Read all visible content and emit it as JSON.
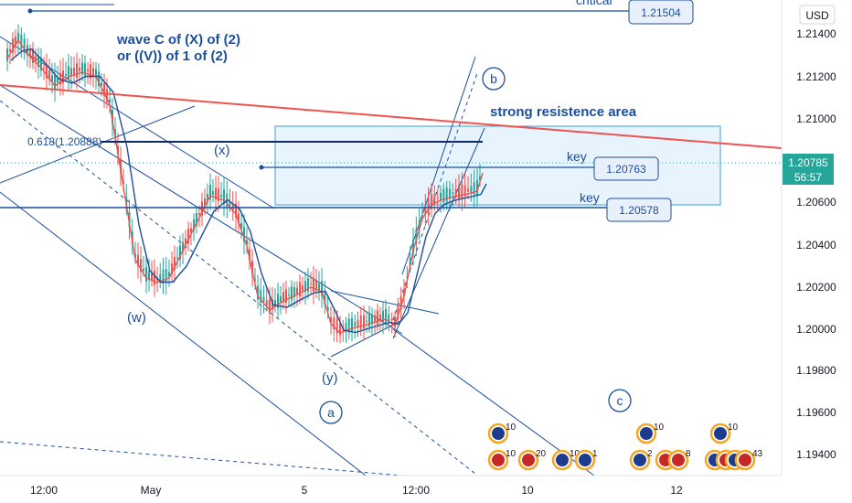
{
  "currency_label": "USD",
  "chart_data": {
    "type": "candlestick",
    "y_axis": {
      "min": 1.193,
      "max": 1.2175,
      "ticks": [
        "1.21400",
        "1.21200",
        "1.21000",
        "1.20600",
        "1.20400",
        "1.20200",
        "1.20000",
        "1.19800",
        "1.19600",
        "1.19400"
      ]
    },
    "x_axis": {
      "ticks": [
        "12:00",
        "May",
        "5",
        "12:00",
        "10",
        "12"
      ]
    },
    "current_price": {
      "value": "1.20785",
      "countdown": "56:57"
    },
    "colors": {
      "resistance_line": "#ef5350",
      "trend_lines": "#1b4e9b",
      "ma_fast": "#ef5350",
      "ma_slow": "#1b4e9b",
      "candle_up": "#26a69a",
      "candle_down": "#ef5350",
      "zone_fill": "#e3f2fd",
      "price_badge": "#26a69a"
    },
    "price_tags": [
      {
        "label": "critical",
        "value": "1.21504"
      },
      {
        "label": "key",
        "value": "1.20763"
      },
      {
        "label": "key",
        "value": "1.20578"
      }
    ],
    "annotations": {
      "title_line1": "wave C of (X) of (2)",
      "title_line2": "or ((V)) of 1 of (2)",
      "zone_label": "strong resistence area",
      "fib_label": "0.618(1.20888)",
      "wave_x": "(x)",
      "wave_w": "(w)",
      "wave_y": "(y)",
      "wave_a": "a",
      "wave_b": "b",
      "wave_c": "c"
    },
    "events": [
      {
        "text": "10",
        "flag": "eu"
      },
      {
        "text": "10",
        "flag": "eu"
      },
      {
        "text": "10",
        "flag": "eu"
      },
      {
        "text": "10",
        "flag": "us"
      },
      {
        "text": "20",
        "flag": "us"
      },
      {
        "text": "10",
        "flag": "eu"
      },
      {
        "text": "1",
        "flag": "eu"
      },
      {
        "text": "2",
        "flag": "eu"
      },
      {
        "text": "4",
        "flag": "us"
      },
      {
        "text": "8",
        "flag": "us"
      },
      {
        "text": "2",
        "flag": "eu"
      },
      {
        "text": "5",
        "flag": "us"
      },
      {
        "text": "0",
        "flag": "eu"
      },
      {
        "text": "43",
        "flag": "us"
      }
    ]
  }
}
